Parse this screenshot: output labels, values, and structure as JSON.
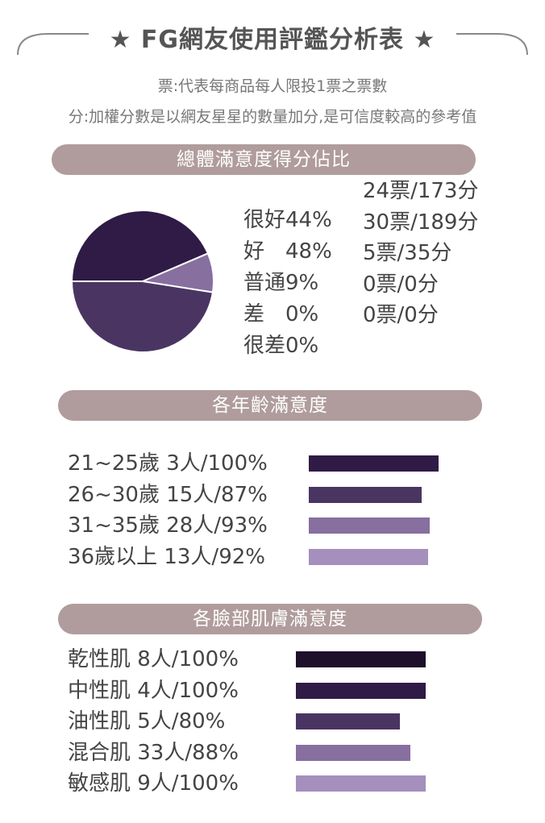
{
  "header": {
    "title": "★ FG網友使用評鑑分析表 ★"
  },
  "notes": {
    "line1": "票:代表每商品每人限投1票之票數",
    "line2": "分:加權分數是以網友星星的數量加分,是可信度較高的參考值"
  },
  "colors": {
    "section_bar": "#b09c9c",
    "very_good": "#2f1b45",
    "good": "#4a3562",
    "normal": "#876fa0",
    "light": "#a48fbd",
    "darkest": "#1e0f2b"
  },
  "satisfaction": {
    "title": "總體滿意度得分佔比",
    "legend": [
      {
        "label": "很好44%"
      },
      {
        "label": "好　48%"
      },
      {
        "label": "普通9%"
      },
      {
        "label": "差　0%"
      },
      {
        "label": "很差0%"
      }
    ],
    "votes": [
      "24票/173分",
      "30票/189分",
      "5票/35分",
      "0票/0分",
      "0票/0分"
    ]
  },
  "age": {
    "title": "各年齡滿意度",
    "rows": [
      {
        "label": "21~25歲 3人/100%"
      },
      {
        "label": "26~30歲 15人/87%"
      },
      {
        "label": "31~35歲 28人/93%"
      },
      {
        "label": "36歲以上 13人/92%"
      }
    ]
  },
  "skin": {
    "title": "各臉部肌膚滿意度",
    "rows": [
      {
        "label": "乾性肌 8人/100%"
      },
      {
        "label": "中性肌 4人/100%"
      },
      {
        "label": "油性肌 5人/80%"
      },
      {
        "label": "混合肌 33人/88%"
      },
      {
        "label": "敏感肌 9人/100%"
      }
    ]
  },
  "chart_data": [
    {
      "type": "pie",
      "title": "總體滿意度得分佔比",
      "categories": [
        "很好",
        "好",
        "普通",
        "差",
        "很差"
      ],
      "values": [
        44,
        48,
        9,
        0,
        0
      ],
      "colors": [
        "#2f1b45",
        "#4a3562",
        "#876fa0",
        "#a48fbd",
        "#c8b8d8"
      ]
    },
    {
      "type": "bar",
      "title": "各年齡滿意度",
      "categories": [
        "21~25歲",
        "26~30歲",
        "31~35歲",
        "36歲以上"
      ],
      "values": [
        100,
        87,
        93,
        92
      ],
      "counts": [
        3,
        15,
        28,
        13
      ],
      "colors": [
        "#2f1b45",
        "#4a3562",
        "#876fa0",
        "#a48fbd"
      ]
    },
    {
      "type": "bar",
      "title": "各臉部肌膚滿意度",
      "categories": [
        "乾性肌",
        "中性肌",
        "油性肌",
        "混合肌",
        "敏感肌"
      ],
      "values": [
        100,
        100,
        80,
        88,
        100
      ],
      "counts": [
        8,
        4,
        5,
        33,
        9
      ],
      "colors": [
        "#1e0f2b",
        "#2f1b45",
        "#4a3562",
        "#876fa0",
        "#a48fbd"
      ]
    }
  ]
}
